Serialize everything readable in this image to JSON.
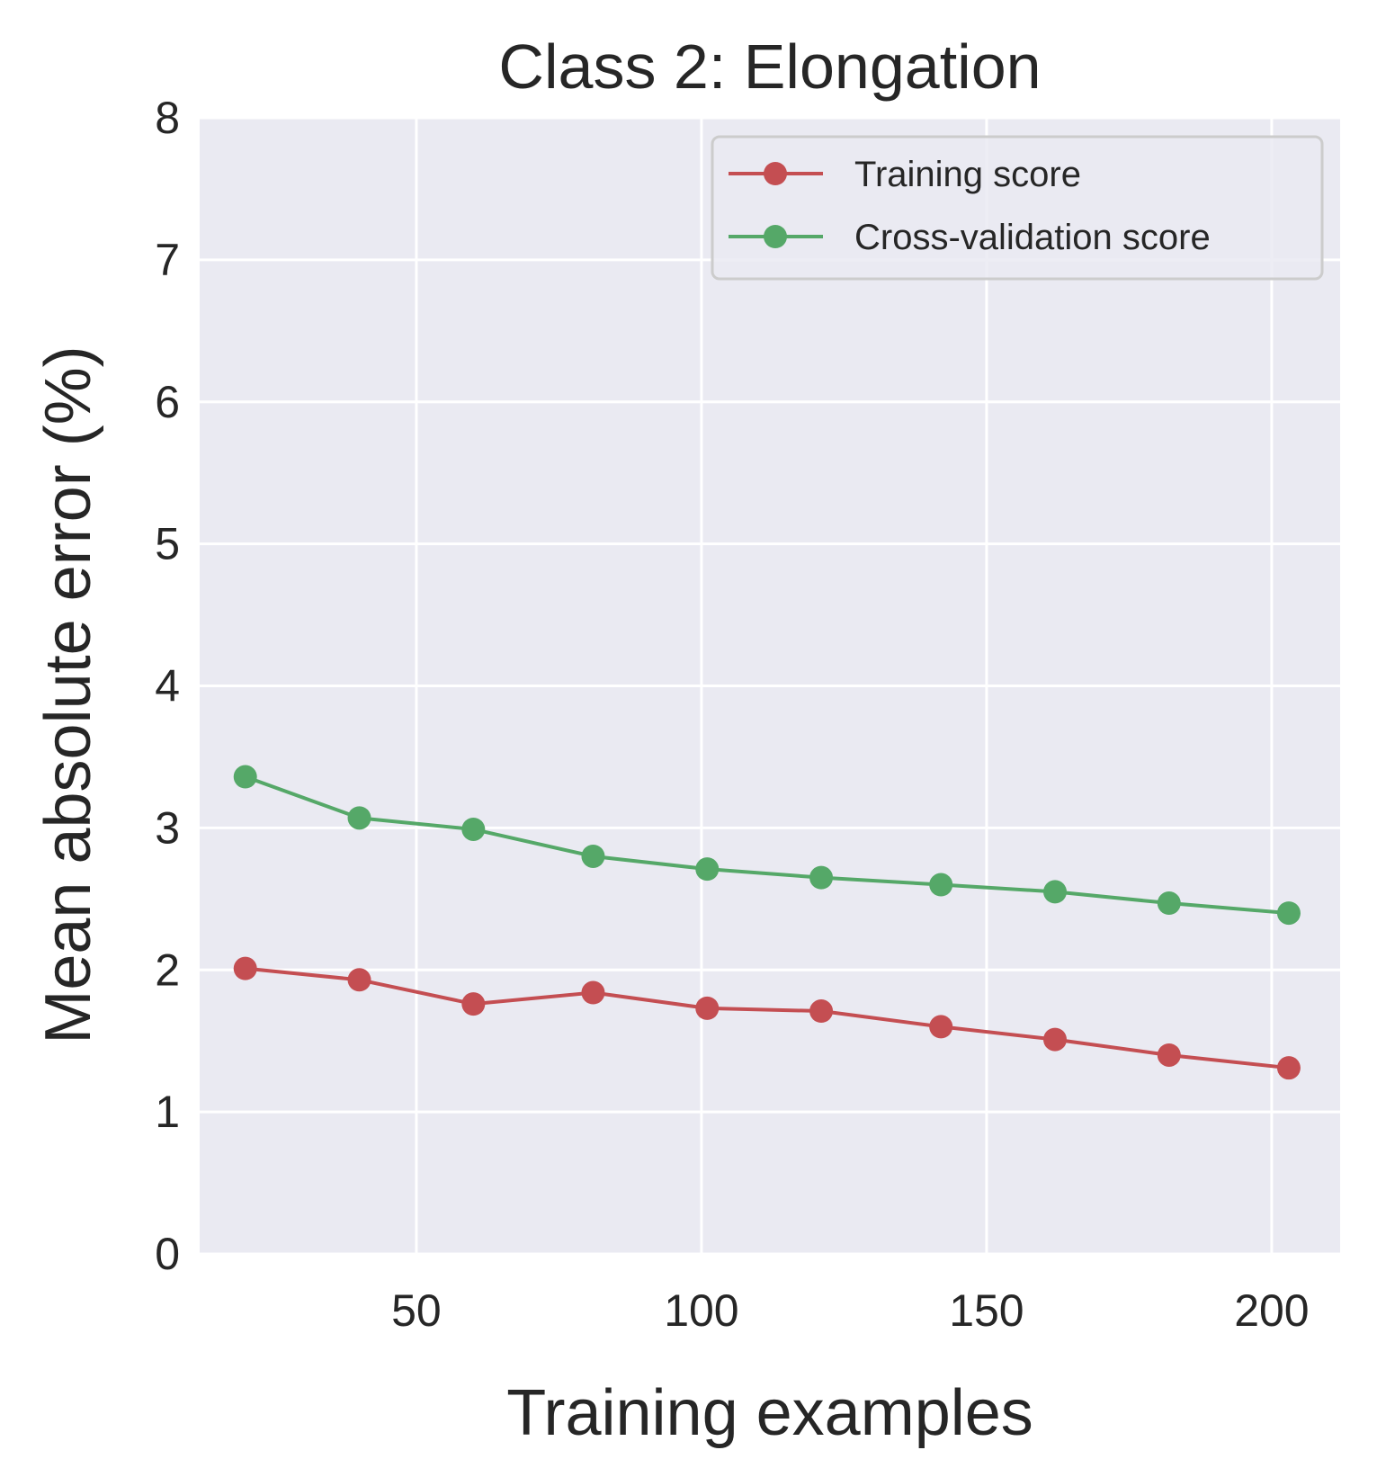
{
  "chart_data": {
    "type": "line",
    "title": "Class 2: Elongation",
    "xlabel": "Training examples",
    "ylabel": "Mean absolute error (%)",
    "xlim": [
      12,
      212
    ],
    "ylim": [
      0,
      8
    ],
    "xticks": [
      50,
      100,
      150,
      200
    ],
    "yticks": [
      0,
      1,
      2,
      3,
      4,
      5,
      6,
      7,
      8
    ],
    "grid": true,
    "legend_position": "top-right",
    "x": [
      20,
      40,
      60,
      81,
      101,
      121,
      142,
      162,
      182,
      203
    ],
    "series": [
      {
        "name": "Training score",
        "color": "#c44e52",
        "values": [
          2.01,
          1.93,
          1.76,
          1.84,
          1.73,
          1.71,
          1.6,
          1.51,
          1.4,
          1.31
        ]
      },
      {
        "name": "Cross-validation score",
        "color": "#55a868",
        "values": [
          3.36,
          3.07,
          2.99,
          2.8,
          2.71,
          2.65,
          2.6,
          2.55,
          2.47,
          2.4
        ]
      }
    ]
  }
}
